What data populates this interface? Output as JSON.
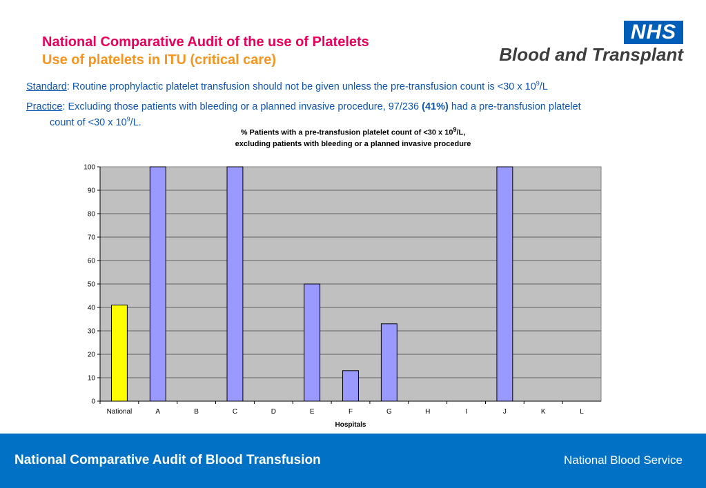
{
  "header": {
    "title": "National Comparative Audit of the use of Platelets",
    "subtitle": "Use of platelets in ITU (critical care)",
    "logo_nhs": "NHS",
    "logo_text": "Blood and Transplant"
  },
  "standard": {
    "label": "Standard",
    "text": ": Routine prophylactic platelet transfusion should not be given unless the pre-transfusion count is <30 x 10",
    "sup": "9",
    "tail": "/L"
  },
  "practice": {
    "label": "Practice",
    "text": ":  Excluding those patients with bleeding or a planned invasive procedure, 97/236 ",
    "highlight": "(41%)",
    "text2": " had a pre-transfusion platelet",
    "line2": "count of <30 x 10",
    "sup": "9",
    "line2_tail": "/L."
  },
  "chart_data": {
    "type": "bar",
    "title_line1": "% Patients with a pre-transfusion platelet count of <30 x 10",
    "title_sup": "9",
    "title_line1_tail": "/L,",
    "title_line2": "excluding patients with bleeding or a planned invasive procedure",
    "xlabel": "Hospitals",
    "ylabel": "",
    "categories": [
      "National",
      "A",
      "B",
      "C",
      "D",
      "E",
      "F",
      "G",
      "H",
      "I",
      "J",
      "K",
      "L"
    ],
    "values": [
      41,
      100,
      0,
      100,
      0,
      50,
      13,
      33,
      0,
      0,
      100,
      0,
      0
    ],
    "ylim": [
      0,
      100
    ],
    "yticks": [
      0,
      10,
      20,
      30,
      40,
      50,
      60,
      70,
      80,
      90,
      100
    ],
    "grid": true,
    "colors": {
      "national": "#ffff00",
      "hospital": "#9999ff",
      "plot_bg": "#c0c0c0",
      "bar_edge": "#000080"
    }
  },
  "footer": {
    "left": "National Comparative Audit of Blood Transfusion",
    "right": "National Blood Service"
  }
}
